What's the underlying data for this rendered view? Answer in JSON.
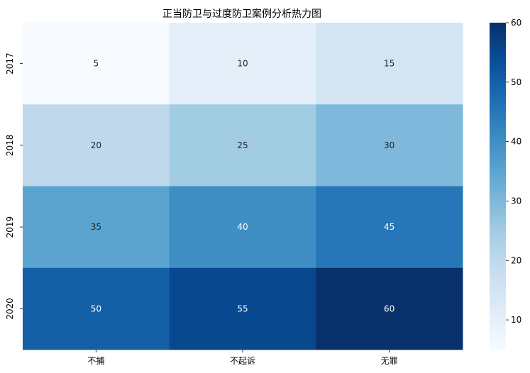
{
  "chart_data": {
    "type": "heatmap",
    "title": "正当防卫与过度防卫案例分析热力图",
    "x_categories": [
      "不捕",
      "不起诉",
      "无罪"
    ],
    "y_categories": [
      "2017",
      "2018",
      "2019",
      "2020"
    ],
    "values": [
      [
        5,
        10,
        15
      ],
      [
        20,
        25,
        30
      ],
      [
        35,
        40,
        45
      ],
      [
        50,
        55,
        60
      ]
    ],
    "colormap": "Blues",
    "vmin": 5,
    "vmax": 60,
    "annotate": true,
    "grid": false,
    "colorbar": {
      "position": "right",
      "ticks": [
        "10",
        "20",
        "30",
        "40",
        "50",
        "60"
      ],
      "tick_values": [
        10,
        20,
        30,
        40,
        50,
        60
      ]
    },
    "xlabel": "",
    "ylabel": ""
  }
}
